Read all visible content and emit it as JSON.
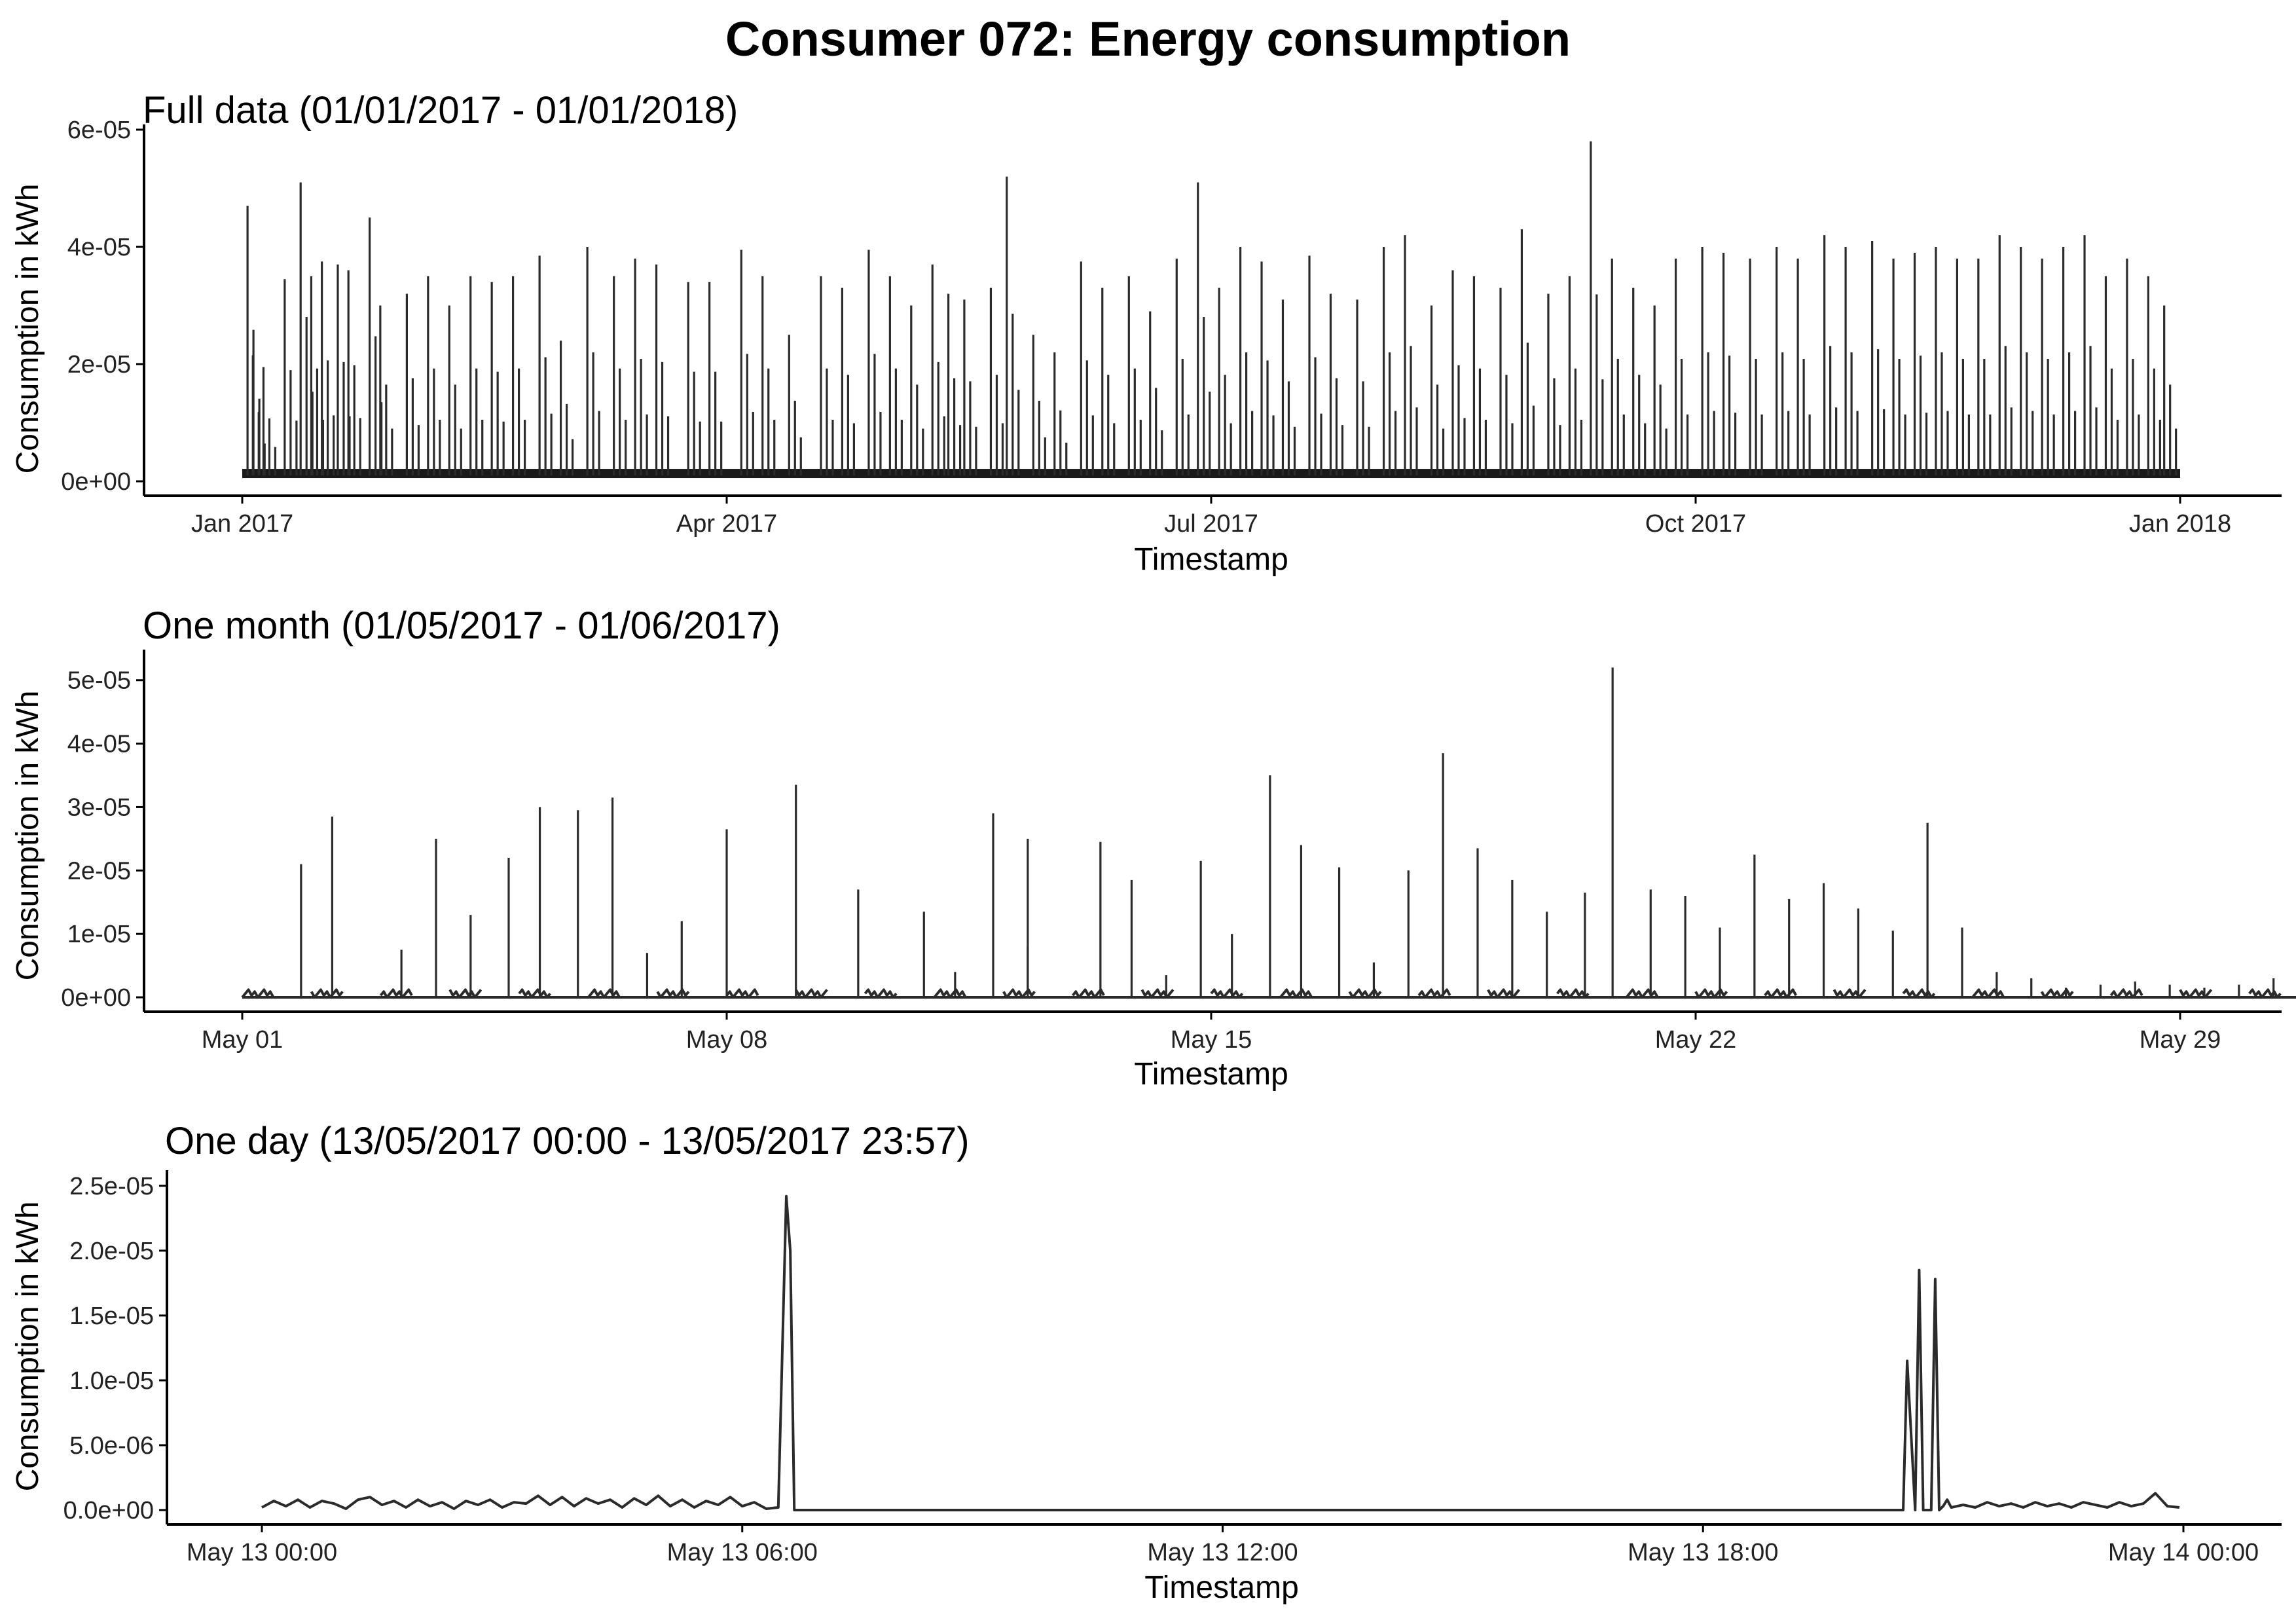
{
  "title": "Consumer 072: Energy consumption",
  "chart_data": [
    {
      "type": "line",
      "title": "Full data (01/01/2017 - 01/01/2018)",
      "xlabel": "Timestamp",
      "ylabel": "Consumption in kWh",
      "x_ticks": [
        "Jan 2017",
        "Apr 2017",
        "Jul 2017",
        "Oct 2017",
        "Jan 2018"
      ],
      "y_ticks": [
        "0e+00",
        "2e-05",
        "4e-05",
        "6e-05"
      ],
      "ylim": [
        0,
        6e-05
      ],
      "xlim": [
        "2017-01-01",
        "2018-01-01"
      ],
      "baseline": 1e-06,
      "series": [
        {
          "x": [
            "2017-01-02",
            "2017-01-03",
            "2017-01-05",
            "2017-01-09",
            "2017-01-12",
            "2017-01-14",
            "2017-01-16",
            "2017-01-19",
            "2017-01-21",
            "2017-01-25",
            "2017-01-27",
            "2017-02-01",
            "2017-02-05",
            "2017-02-09",
            "2017-02-13",
            "2017-02-17",
            "2017-02-21",
            "2017-02-26",
            "2017-03-02",
            "2017-03-07",
            "2017-03-12",
            "2017-03-16",
            "2017-03-20",
            "2017-03-26",
            "2017-03-30",
            "2017-04-05",
            "2017-04-09",
            "2017-04-14",
            "2017-04-20",
            "2017-04-24",
            "2017-04-29",
            "2017-05-03",
            "2017-05-07",
            "2017-05-11",
            "2017-05-14",
            "2017-05-17",
            "2017-05-22",
            "2017-05-25",
            "2017-05-30",
            "2017-06-03",
            "2017-06-08",
            "2017-06-12",
            "2017-06-17",
            "2017-06-21",
            "2017-06-26",
            "2017-06-30",
            "2017-07-04",
            "2017-07-08",
            "2017-07-12",
            "2017-07-16",
            "2017-07-21",
            "2017-07-25",
            "2017-07-30",
            "2017-08-04",
            "2017-08-08",
            "2017-08-13",
            "2017-08-17",
            "2017-08-21",
            "2017-08-26",
            "2017-08-30",
            "2017-09-04",
            "2017-09-08",
            "2017-09-12",
            "2017-09-16",
            "2017-09-20",
            "2017-09-24",
            "2017-09-28",
            "2017-10-03",
            "2017-10-07",
            "2017-10-12",
            "2017-10-17",
            "2017-10-21",
            "2017-10-26",
            "2017-10-30",
            "2017-11-04",
            "2017-11-08",
            "2017-11-12",
            "2017-11-16",
            "2017-11-20",
            "2017-11-24",
            "2017-11-28",
            "2017-12-02",
            "2017-12-06",
            "2017-12-10",
            "2017-12-14",
            "2017-12-18",
            "2017-12-22",
            "2017-12-26",
            "2017-12-29"
          ],
          "y": [
            4.7e-05,
            2.15e-05,
            1.95e-05,
            3.45e-05,
            5.1e-05,
            3.5e-05,
            3.75e-05,
            3.7e-05,
            3.6e-05,
            4.5e-05,
            3e-05,
            3.2e-05,
            3.5e-05,
            3e-05,
            3.5e-05,
            3.4e-05,
            3.5e-05,
            3.85e-05,
            2.4e-05,
            4e-05,
            3.5e-05,
            3.8e-05,
            3.7e-05,
            3.4e-05,
            3.4e-05,
            3.95e-05,
            3.5e-05,
            2.5e-05,
            3.5e-05,
            3.3e-05,
            3.95e-05,
            3.5e-05,
            3e-05,
            3.7e-05,
            3.2e-05,
            3.1e-05,
            3.3e-05,
            5.2e-05,
            2.5e-05,
            2.2e-05,
            3.75e-05,
            3.3e-05,
            3.5e-05,
            2.9e-05,
            3.8e-05,
            5.1e-05,
            3.3e-05,
            4e-05,
            3.75e-05,
            3.1e-05,
            3.85e-05,
            3.2e-05,
            3.1e-05,
            4e-05,
            4.2e-05,
            3e-05,
            3.6e-05,
            3.5e-05,
            3.3e-05,
            4.3e-05,
            3.2e-05,
            3.5e-05,
            5.8e-05,
            3.8e-05,
            3.3e-05,
            3e-05,
            3.8e-05,
            4e-05,
            3.9e-05,
            3.8e-05,
            4e-05,
            3.8e-05,
            4.2e-05,
            4e-05,
            4.1e-05,
            3.8e-05,
            3.9e-05,
            4e-05,
            3.8e-05,
            3.8e-05,
            4.2e-05,
            4e-05,
            3.8e-05,
            4e-05,
            4.2e-05,
            3.5e-05,
            3.8e-05,
            3.5e-05,
            3e-05
          ]
        }
      ]
    },
    {
      "type": "line",
      "title": "One month (01/05/2017 - 01/06/2017)",
      "xlabel": "Timestamp",
      "ylabel": "Consumption in kWh",
      "x_ticks": [
        "May 01",
        "May 08",
        "May 15",
        "May 22",
        "May 29"
      ],
      "y_ticks": [
        "0e+00",
        "1e-05",
        "2e-05",
        "3e-05",
        "4e-05",
        "5e-05"
      ],
      "ylim": [
        0,
        5.4e-05
      ],
      "xlim": [
        "2017-05-01",
        "2017-06-01"
      ],
      "baseline": 5e-07,
      "series": [
        {
          "x": [
            0.85,
            1.3,
            2.3,
            2.8,
            3.3,
            3.85,
            4.3,
            4.85,
            5.35,
            5.85,
            6.35,
            7.0,
            8.0,
            8.9,
            9.85,
            10.3,
            10.85,
            11.35,
            11.35,
            12.4,
            12.85,
            13.35,
            13.85,
            14.3,
            14.85,
            15.3,
            15.85,
            16.35,
            16.85,
            17.35,
            17.85,
            18.35,
            18.85,
            19.4,
            19.8,
            20.35,
            20.85,
            21.35,
            21.85,
            22.35,
            22.85,
            23.35,
            23.85,
            24.35,
            24.85,
            25.35,
            25.85,
            26.35,
            26.85,
            27.35,
            27.85,
            28.35,
            28.85,
            29.35,
            29.85,
            30.35,
            30.85
          ],
          "y": [
            2.1e-05,
            2.85e-05,
            7.5e-06,
            2.5e-05,
            1.3e-05,
            2.2e-05,
            3e-05,
            2.95e-05,
            3.15e-05,
            7e-06,
            1.2e-05,
            2.65e-05,
            3.35e-05,
            1.7e-05,
            1.35e-05,
            4e-06,
            2.9e-05,
            2.5e-05,
            8e-06,
            2.45e-05,
            1.85e-05,
            3.5e-06,
            2.15e-05,
            1e-05,
            3.5e-05,
            2.4e-05,
            2.05e-05,
            5.5e-06,
            2e-05,
            3.85e-05,
            2.35e-05,
            1.85e-05,
            1.35e-05,
            1.65e-05,
            5.2e-05,
            1.7e-05,
            1.6e-05,
            1.1e-05,
            2.25e-05,
            1.55e-05,
            1.8e-05,
            1.4e-05,
            1.05e-05,
            2.75e-05,
            1.1e-05,
            4e-06,
            3e-06,
            1.5e-06,
            2e-06,
            2.5e-06,
            2e-06,
            1.5e-06,
            2e-06,
            3e-06,
            2e-06,
            2.5e-06,
            2e-06
          ]
        }
      ]
    },
    {
      "type": "line",
      "title": "One day (13/05/2017 00:00 - 13/05/2017 23:57)",
      "xlabel": "Timestamp",
      "ylabel": "Consumption in kWh",
      "x_ticks": [
        "May 13 00:00",
        "May 13 06:00",
        "May 13 12:00",
        "May 13 18:00",
        "May 14 00:00"
      ],
      "y_ticks": [
        "0.0e+00",
        "5.0e-06",
        "1.0e-05",
        "1.5e-05",
        "2.0e-05",
        "2.5e-05"
      ],
      "ylim": [
        0,
        2.58e-05
      ],
      "xlim": [
        "2017-05-13T00:00",
        "2017-05-14T00:00"
      ],
      "series": [
        {
          "x": [
            0.0,
            0.15,
            0.3,
            0.45,
            0.6,
            0.75,
            0.9,
            1.05,
            1.2,
            1.35,
            1.5,
            1.65,
            1.8,
            1.95,
            2.1,
            2.25,
            2.4,
            2.55,
            2.7,
            2.85,
            3.0,
            3.15,
            3.3,
            3.45,
            3.6,
            3.75,
            3.9,
            4.05,
            4.2,
            4.35,
            4.5,
            4.65,
            4.8,
            4.95,
            5.1,
            5.25,
            5.4,
            5.55,
            5.7,
            5.85,
            6.0,
            6.15,
            6.3,
            6.45,
            6.55,
            6.6,
            6.65,
            6.75,
            7.0,
            12.0,
            18.0,
            20.5,
            20.55,
            20.65,
            20.7,
            20.75,
            20.85,
            20.9,
            20.95,
            21.0,
            21.05,
            21.1,
            21.25,
            21.4,
            21.55,
            21.7,
            21.85,
            22.0,
            22.15,
            22.3,
            22.45,
            22.6,
            22.75,
            22.9,
            23.05,
            23.2,
            23.35,
            23.5,
            23.65,
            23.8,
            23.95
          ],
          "y": [
            2e-07,
            7e-07,
            3e-07,
            8e-07,
            2e-07,
            7e-07,
            5e-07,
            1e-07,
            8e-07,
            1e-06,
            4e-07,
            7e-07,
            2e-07,
            8e-07,
            3e-07,
            6e-07,
            1e-07,
            7e-07,
            4e-07,
            8e-07,
            2e-07,
            6e-07,
            5e-07,
            1.1e-06,
            4e-07,
            1e-06,
            3e-07,
            9e-07,
            5e-07,
            8e-07,
            2e-07,
            9e-07,
            4e-07,
            1.1e-06,
            3e-07,
            8e-07,
            2e-07,
            7e-07,
            4e-07,
            1e-06,
            3e-07,
            6e-07,
            1e-07,
            2e-07,
            2.42e-05,
            2e-05,
            0.0,
            0.0,
            0.0,
            0.0,
            0.0,
            0.0,
            1.15e-05,
            0.0,
            1.85e-05,
            0.0,
            0.0,
            1.78e-05,
            0.0,
            3e-07,
            8e-07,
            2e-07,
            4e-07,
            2e-07,
            6e-07,
            3e-07,
            5e-07,
            2e-07,
            6e-07,
            3e-07,
            5e-07,
            2e-07,
            6e-07,
            4e-07,
            2e-07,
            6e-07,
            3e-07,
            5e-07,
            1.3e-06,
            3e-07,
            2e-07
          ]
        }
      ]
    }
  ]
}
